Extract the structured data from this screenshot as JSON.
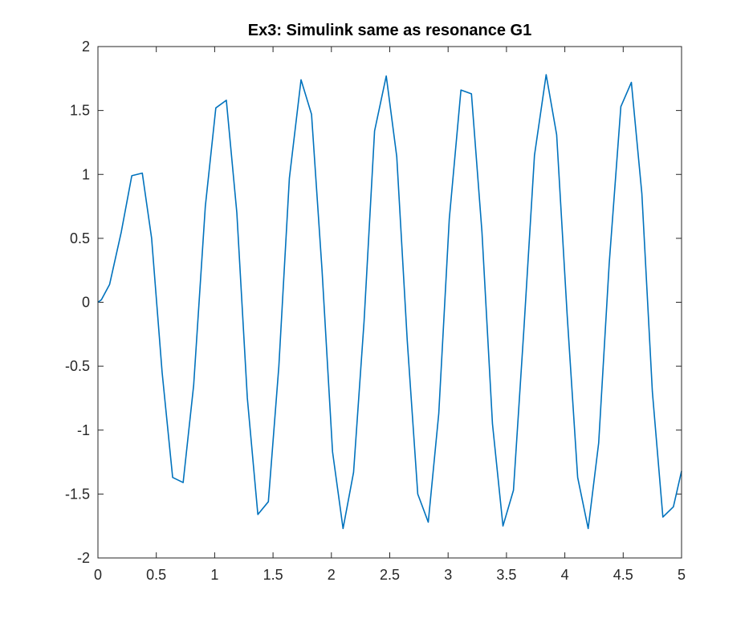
{
  "chart_data": {
    "type": "line",
    "title": "Ex3: Simulink same as resonance G1",
    "xlabel": "",
    "ylabel": "",
    "xlim": [
      0,
      5
    ],
    "ylim": [
      -2,
      2
    ],
    "xticks": [
      0,
      0.5,
      1,
      1.5,
      2,
      2.5,
      3,
      3.5,
      4,
      4.5,
      5
    ],
    "yticks": [
      -2,
      -1.5,
      -1,
      -0.5,
      0,
      0.5,
      1,
      1.5,
      2
    ],
    "xtick_labels": [
      "0",
      "0.5",
      "1",
      "1.5",
      "2",
      "2.5",
      "3",
      "3.5",
      "4",
      "4.5",
      "5"
    ],
    "ytick_labels": [
      "-2",
      "-1.5",
      "-1",
      "-0.5",
      "0",
      "0.5",
      "1",
      "1.5",
      "2"
    ],
    "grid": false,
    "box": true,
    "colors": {
      "line": "#0072BD",
      "axes": "#262626",
      "background": "#ffffff"
    },
    "series": [
      {
        "x": [
          0,
          0.03,
          0.1,
          0.2,
          0.29,
          0.38,
          0.46,
          0.55,
          0.64,
          0.73,
          0.82,
          0.92,
          1.01,
          1.1,
          1.19,
          1.28,
          1.37,
          1.46,
          1.55,
          1.64,
          1.74,
          1.83,
          1.92,
          2.01,
          2.1,
          2.19,
          2.28,
          2.37,
          2.47,
          2.56,
          2.65,
          2.74,
          2.83,
          2.92,
          3.01,
          3.11,
          3.2,
          3.29,
          3.38,
          3.47,
          3.56,
          3.65,
          3.74,
          3.84,
          3.93,
          4.02,
          4.11,
          4.2,
          4.29,
          4.38,
          4.48,
          4.57,
          4.66,
          4.75,
          4.84,
          4.93,
          5.0
        ],
        "y": [
          0,
          0.02,
          0.14,
          0.55,
          0.99,
          1.01,
          0.5,
          -0.55,
          -1.37,
          -1.41,
          -0.65,
          0.75,
          1.52,
          1.58,
          0.7,
          -0.75,
          -1.66,
          -1.56,
          -0.5,
          0.97,
          1.74,
          1.47,
          0.25,
          -1.17,
          -1.77,
          -1.33,
          -0.15,
          1.34,
          1.77,
          1.14,
          -0.3,
          -1.5,
          -1.72,
          -0.87,
          0.65,
          1.66,
          1.63,
          0.55,
          -0.95,
          -1.75,
          -1.47,
          -0.2,
          1.15,
          1.78,
          1.31,
          -0.1,
          -1.37,
          -1.77,
          -1.1,
          0.3,
          1.53,
          1.72,
          0.85,
          -0.7,
          -1.68,
          -1.6,
          -1.32
        ]
      }
    ]
  }
}
